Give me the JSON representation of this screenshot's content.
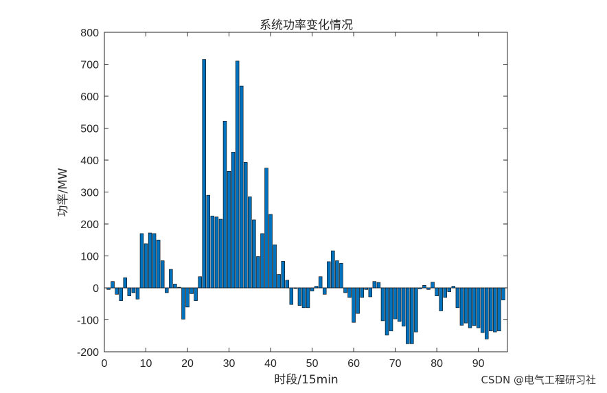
{
  "watermark": "CSDN @电气工程研习社",
  "chart_data": {
    "type": "bar",
    "title": "系统功率变化情况",
    "xlabel": "时段/15min",
    "ylabel": "功率/MW",
    "xlim": [
      0,
      97
    ],
    "ylim": [
      -200,
      800
    ],
    "xticks": [
      0,
      10,
      20,
      30,
      40,
      50,
      60,
      70,
      80,
      90
    ],
    "yticks": [
      -200,
      -100,
      0,
      100,
      200,
      300,
      400,
      500,
      600,
      700,
      800
    ],
    "bar_color": "#0072BD",
    "grid": false,
    "x": [
      1,
      2,
      3,
      4,
      5,
      6,
      7,
      8,
      9,
      10,
      11,
      12,
      13,
      14,
      15,
      16,
      17,
      18,
      19,
      20,
      21,
      22,
      23,
      24,
      25,
      26,
      27,
      28,
      29,
      30,
      31,
      32,
      33,
      34,
      35,
      36,
      37,
      38,
      39,
      40,
      41,
      42,
      43,
      44,
      45,
      46,
      47,
      48,
      49,
      50,
      51,
      52,
      53,
      54,
      55,
      56,
      57,
      58,
      59,
      60,
      61,
      62,
      63,
      64,
      65,
      66,
      67,
      68,
      69,
      70,
      71,
      72,
      73,
      74,
      75,
      76,
      77,
      78,
      79,
      80,
      81,
      82,
      83,
      84,
      85,
      86,
      87,
      88,
      89,
      90,
      91,
      92,
      93,
      94,
      95,
      96
    ],
    "values": [
      -5,
      20,
      -20,
      -40,
      32,
      -25,
      -15,
      -35,
      170,
      138,
      172,
      170,
      150,
      85,
      -15,
      58,
      12,
      2,
      -98,
      -60,
      -18,
      -40,
      35,
      715,
      290,
      225,
      222,
      215,
      522,
      365,
      425,
      710,
      632,
      393,
      285,
      213,
      98,
      170,
      375,
      230,
      135,
      42,
      83,
      24,
      -52,
      -2,
      -55,
      -62,
      -62,
      -10,
      5,
      35,
      -20,
      82,
      116,
      85,
      77,
      -15,
      -30,
      -108,
      -80,
      -30,
      -5,
      -28,
      20,
      17,
      -103,
      -148,
      -135,
      -97,
      -105,
      -120,
      -175,
      -175,
      -138,
      -3,
      8,
      -5,
      18,
      -25,
      -72,
      -30,
      -12,
      5,
      -62,
      -117,
      -110,
      -125,
      -118,
      -125,
      -140,
      -160,
      -135,
      -138,
      -135,
      -38
    ]
  }
}
